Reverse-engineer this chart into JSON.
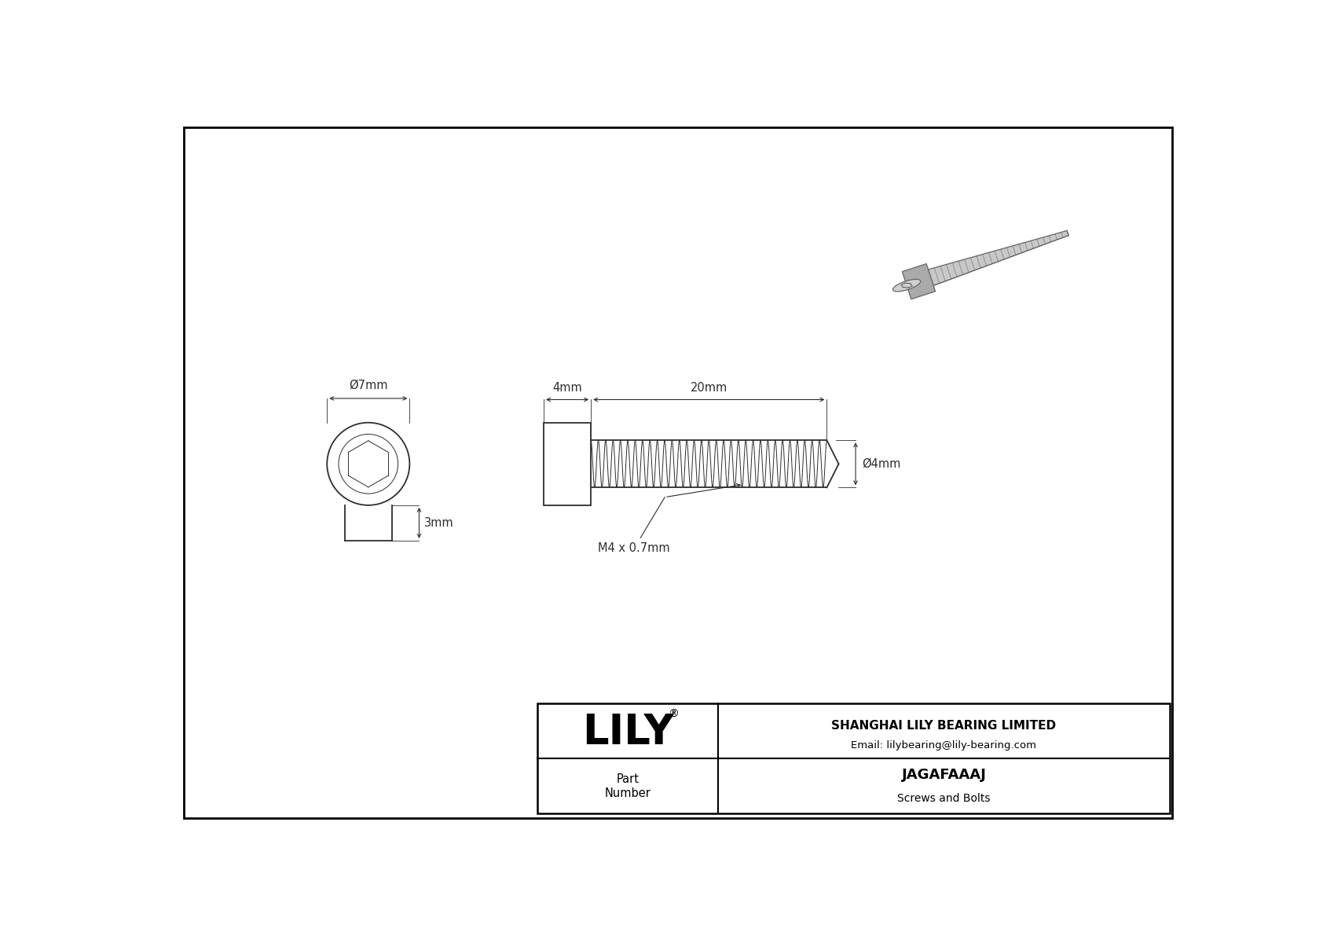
{
  "drawing_bg": "#ffffff",
  "line_color": "#2d2d2d",
  "title_company": "SHANGHAI LILY BEARING LIMITED",
  "title_email": "Email: lilybearing@lily-bearing.com",
  "part_number": "JAGAFAAAJ",
  "part_category": "Screws and Bolts",
  "label_part": "Part\nNumber",
  "label_lily": "LILY",
  "dim_diameter_head": "Ø7mm",
  "dim_height_head": "3mm",
  "dim_length_head": "4mm",
  "dim_length_thread": "20mm",
  "dim_diameter_thread": "Ø4mm",
  "dim_thread_spec": "M4 x 0.7mm",
  "font_size_dim": 10.5,
  "font_size_lily": 38,
  "font_size_company": 11,
  "font_size_part": 13,
  "border_color": "#000000",
  "lw_main": 1.3,
  "lw_dim": 0.8,
  "lw_thin": 0.7
}
